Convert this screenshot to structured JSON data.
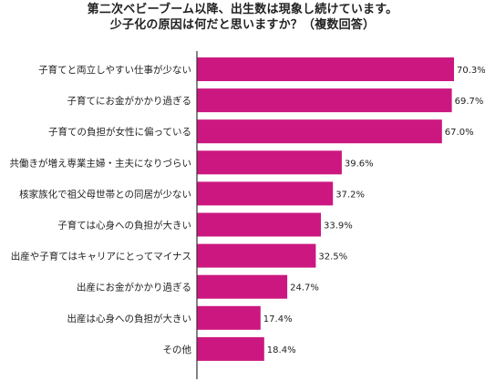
{
  "title_lines": [
    "第二次ベビーブーム以降、出生数は現象し続けています。",
    "少子化の原因は何だと思いますか？（複数回答）"
  ],
  "chart_data": {
    "type": "bar",
    "orientation": "horizontal",
    "title": "第二次ベビーブーム以降、出生数は現象し続けています。少子化の原因は何だと思いますか？（複数回答）",
    "categories": [
      "子育てと両立しやすい仕事が少ない",
      "子育てにお金がかかり過ぎる",
      "子育ての負担が女性に偏っている",
      "共働きが増え専業主婦・主夫になりづらい",
      "核家族化で祖父母世帯との同居が少ない",
      "子育ては心身への負担が大きい",
      "出産や子育てはキャリアにとってマイナス",
      "出産にお金がかかり過ぎる",
      "出産は心身への負担が大きい",
      "その他"
    ],
    "values": [
      70.3,
      69.7,
      67.0,
      39.6,
      37.2,
      33.9,
      32.5,
      24.7,
      17.4,
      18.4
    ],
    "value_labels": [
      "70.3%",
      "69.7%",
      "67.0%",
      "39.6%",
      "37.2%",
      "33.9%",
      "32.5%",
      "24.7%",
      "17.4%",
      "18.4%"
    ],
    "xlim": [
      0,
      75
    ],
    "unit": "%",
    "bar_color": "#CC1780",
    "axis_color": "#333333",
    "grid": false,
    "legend": "none"
  }
}
